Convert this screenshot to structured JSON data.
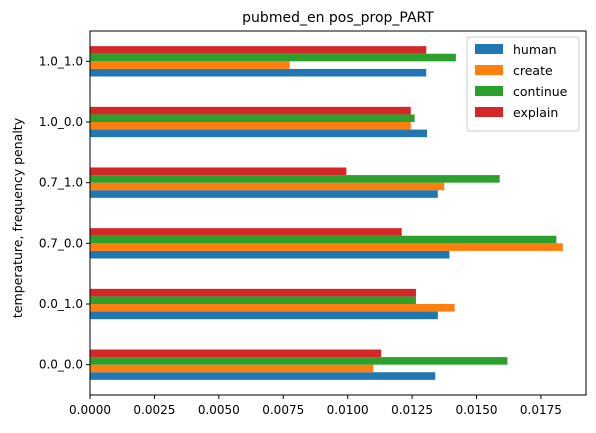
{
  "chart_data": {
    "type": "bar",
    "orientation": "horizontal",
    "title": "pubmed_en pos_prop_PART",
    "xlabel": "",
    "ylabel": "temperature, frequency penalty",
    "categories": [
      "0.0_0.0",
      "0.0_1.0",
      "0.7_0.0",
      "0.7_1.0",
      "1.0_0.0",
      "1.0_1.0"
    ],
    "xlim": [
      0,
      0.01925
    ],
    "xticks": [
      "0.0000",
      "0.0025",
      "0.0050",
      "0.0075",
      "0.0100",
      "0.0125",
      "0.0150",
      "0.0175"
    ],
    "grid": false,
    "legend_position": "top-right",
    "series": [
      {
        "name": "human",
        "color": "#1f77b4",
        "values": [
          0.0134,
          0.0135,
          0.01395,
          0.0135,
          0.01308,
          0.01305
        ]
      },
      {
        "name": "create",
        "color": "#ff7f0e",
        "values": [
          0.011,
          0.01415,
          0.01835,
          0.01375,
          0.01245,
          0.00775
        ]
      },
      {
        "name": "continue",
        "color": "#2ca02c",
        "values": [
          0.0162,
          0.01265,
          0.0181,
          0.0159,
          0.0126,
          0.0142
        ]
      },
      {
        "name": "explain",
        "color": "#d62728",
        "values": [
          0.0113,
          0.01265,
          0.0121,
          0.00995,
          0.01245,
          0.01305
        ]
      }
    ]
  }
}
